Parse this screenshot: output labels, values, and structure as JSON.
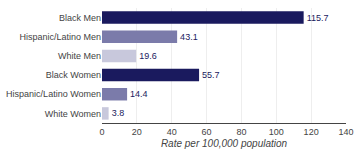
{
  "chart_data": {
    "type": "bar",
    "orientation": "horizontal",
    "categories": [
      "Black Men",
      "Hispanic/Latino Men",
      "White Men",
      "Black Women",
      "Hispanic/Latino Women",
      "White Women"
    ],
    "values": [
      115.7,
      43.1,
      19.6,
      55.7,
      14.4,
      3.8
    ],
    "colors": [
      "#1a1a5e",
      "#7b7baa",
      "#c8c8dc",
      "#1a1a5e",
      "#7b7baa",
      "#c8c8dc"
    ],
    "xlabel": "Rate per 100,000 population",
    "xlim": [
      0,
      140
    ],
    "xticks": [
      0,
      20,
      40,
      60,
      80,
      100,
      120,
      140
    ],
    "grid": true,
    "data_labels": true
  }
}
